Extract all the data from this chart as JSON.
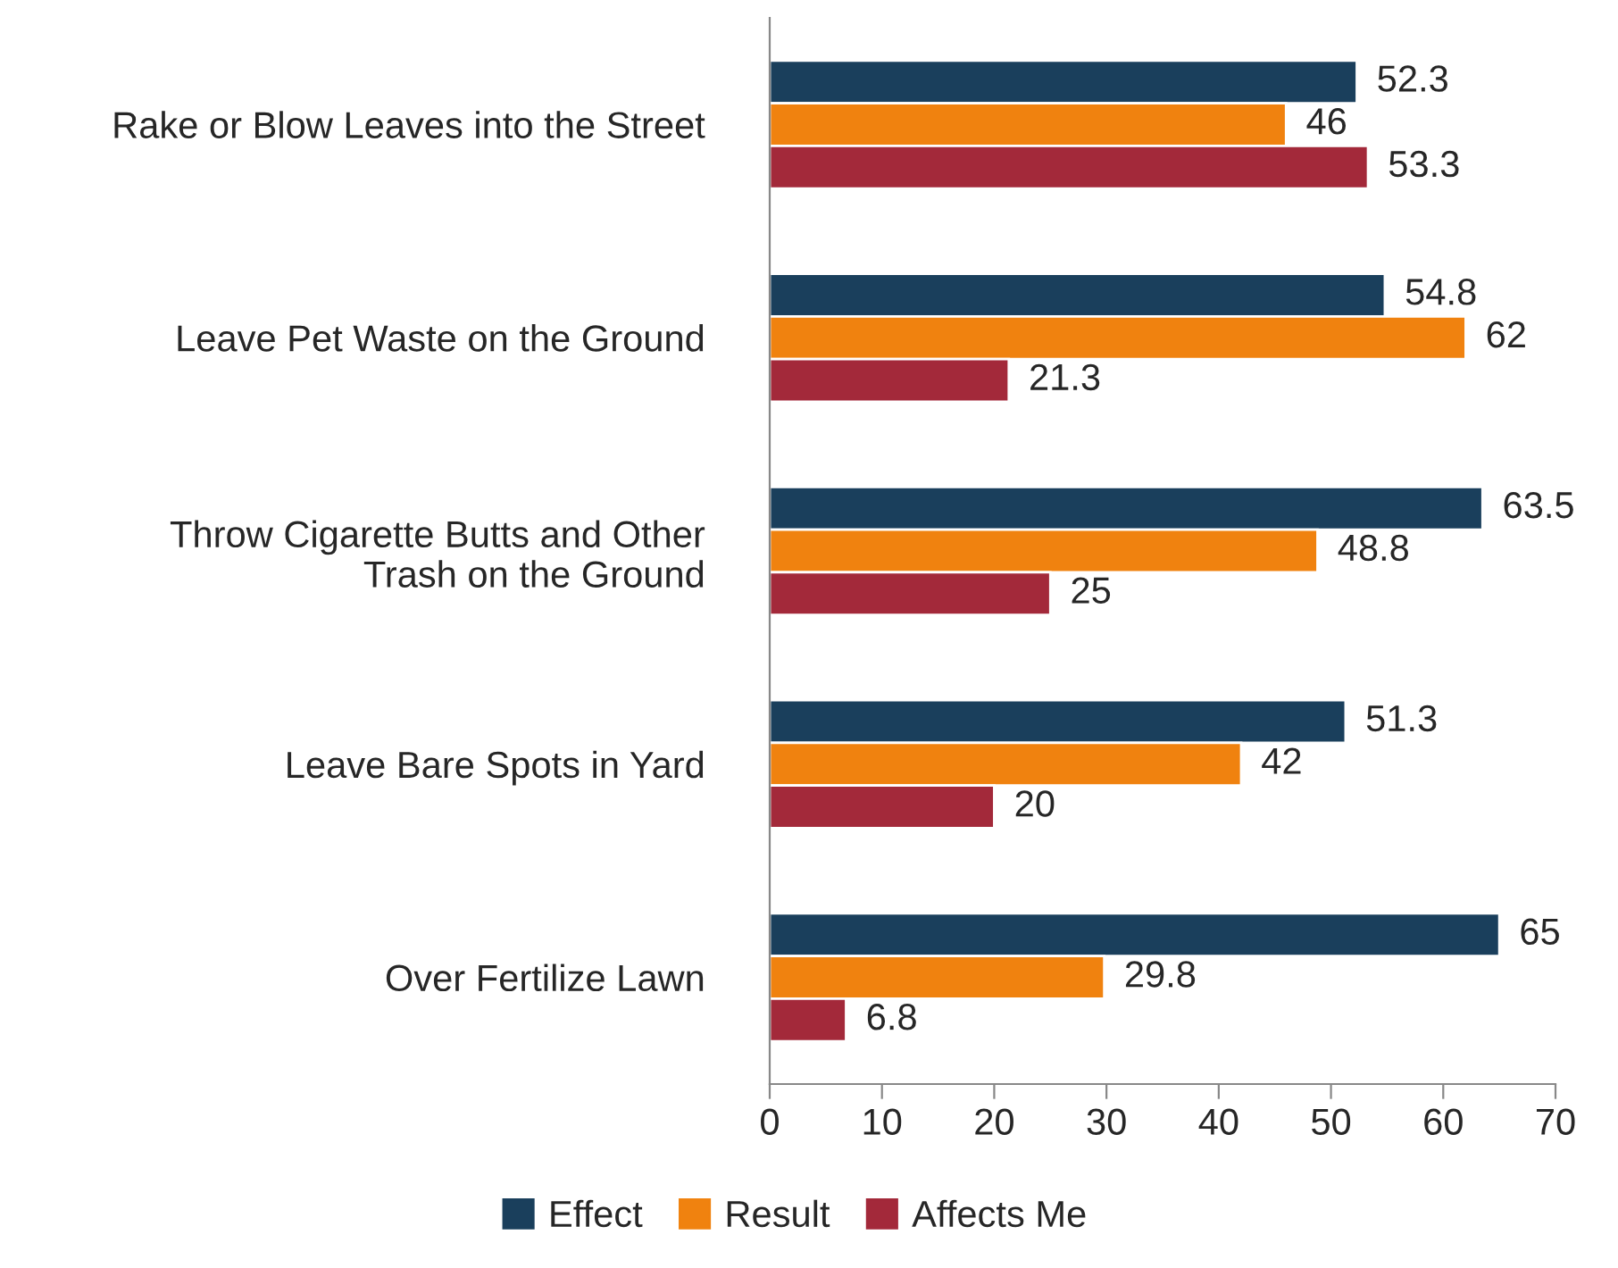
{
  "chart_data": {
    "type": "bar",
    "orientation": "horizontal",
    "categories": [
      "Rake or Blow Leaves into the Street",
      "Leave Pet Waste on the Ground",
      "Throw Cigarette Butts and Other\nTrash on the Ground",
      "Leave Bare Spots in Yard",
      "Over Fertilize Lawn"
    ],
    "series": [
      {
        "name": "Effect",
        "color": "#1a3f5c",
        "values": [
          52.3,
          54.8,
          63.5,
          51.3,
          65
        ]
      },
      {
        "name": "Result",
        "color": "#f0820f",
        "values": [
          46,
          62,
          48.8,
          42,
          29.8
        ]
      },
      {
        "name": "Affects Me",
        "color": "#a3293a",
        "values": [
          53.3,
          21.3,
          25,
          20,
          6.8
        ]
      }
    ],
    "xlim": [
      0,
      70
    ],
    "xticks": [
      0,
      10,
      20,
      30,
      40,
      50,
      60,
      70
    ],
    "data_labels": true,
    "grid": false,
    "legend": "bottom"
  }
}
